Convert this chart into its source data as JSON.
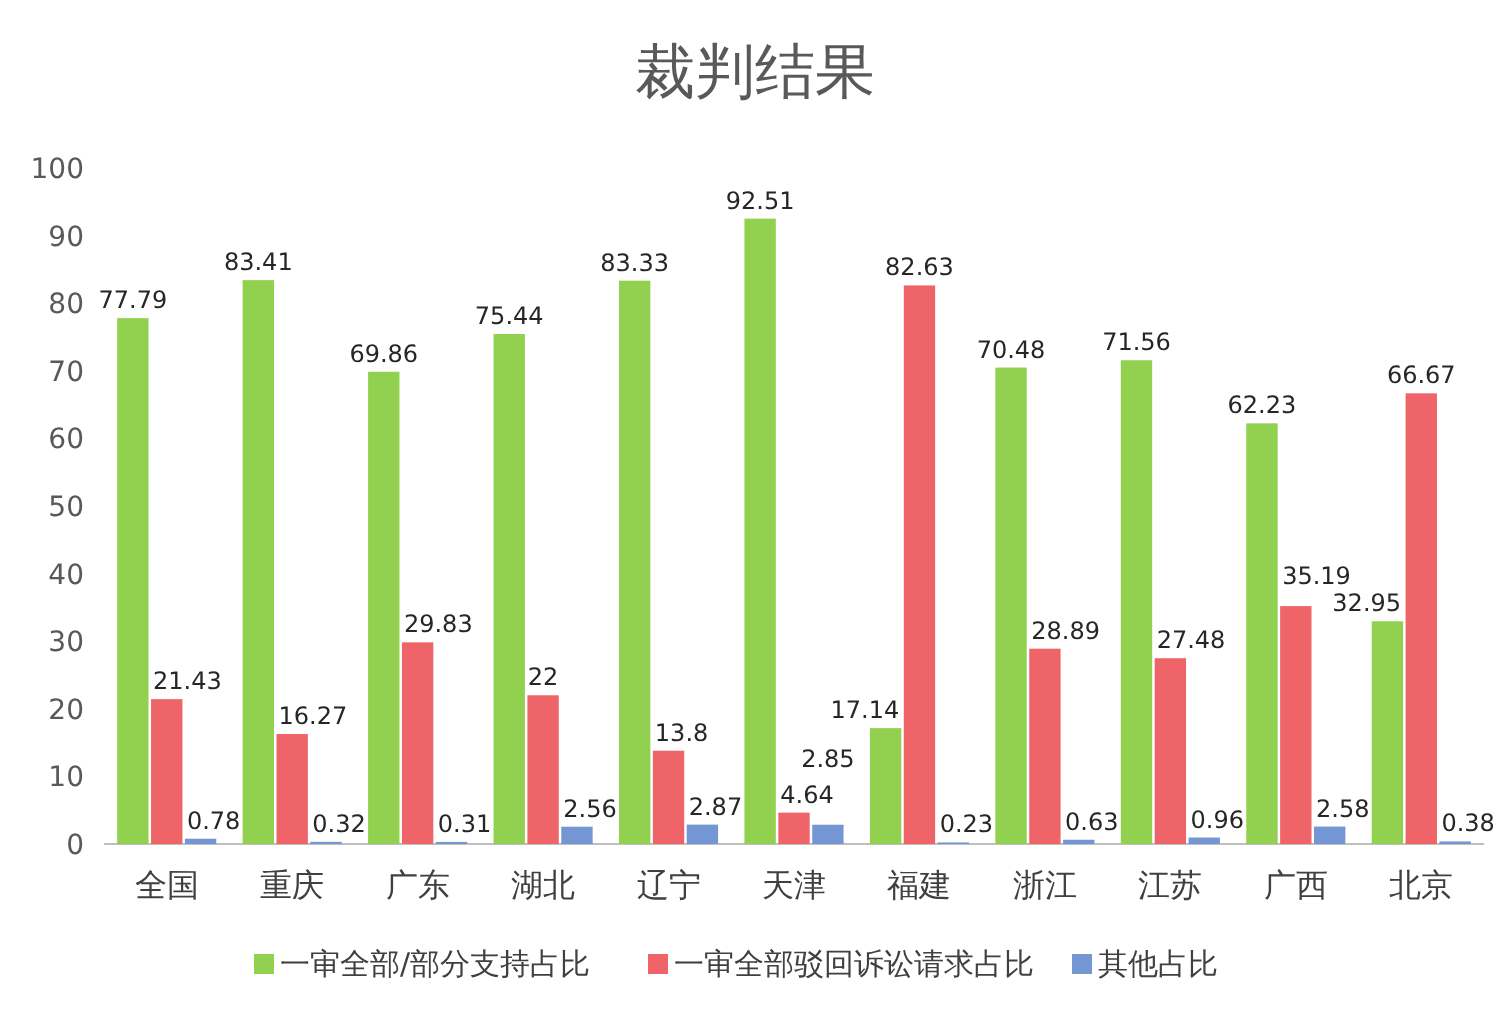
{
  "chart_data": {
    "type": "bar",
    "title": "裁判结果",
    "categories": [
      "全国",
      "重庆",
      "广东",
      "湖北",
      "辽宁",
      "天津",
      "福建",
      "浙江",
      "江苏",
      "广西",
      "北京"
    ],
    "series": [
      {
        "name": "一审全部/部分支持占比",
        "color": "#92d050",
        "values": [
          77.79,
          83.41,
          69.86,
          75.44,
          83.33,
          92.51,
          17.14,
          70.48,
          71.56,
          62.23,
          32.95
        ]
      },
      {
        "name": "一审全部驳回诉讼请求占比",
        "color": "#ef6468",
        "values": [
          21.43,
          16.27,
          29.83,
          22,
          13.8,
          4.64,
          82.63,
          28.89,
          27.48,
          35.19,
          66.67
        ]
      },
      {
        "name": "其他占比",
        "color": "#7496d2",
        "values": [
          0.78,
          0.32,
          0.31,
          2.56,
          2.87,
          2.85,
          0.23,
          0.63,
          0.96,
          2.58,
          0.38
        ]
      }
    ],
    "ylim": [
      0,
      100
    ],
    "yticks": [
      0,
      10,
      20,
      30,
      40,
      50,
      60,
      70,
      80,
      90,
      100
    ],
    "grid": false,
    "legend": "bottom",
    "data_labels": true
  }
}
